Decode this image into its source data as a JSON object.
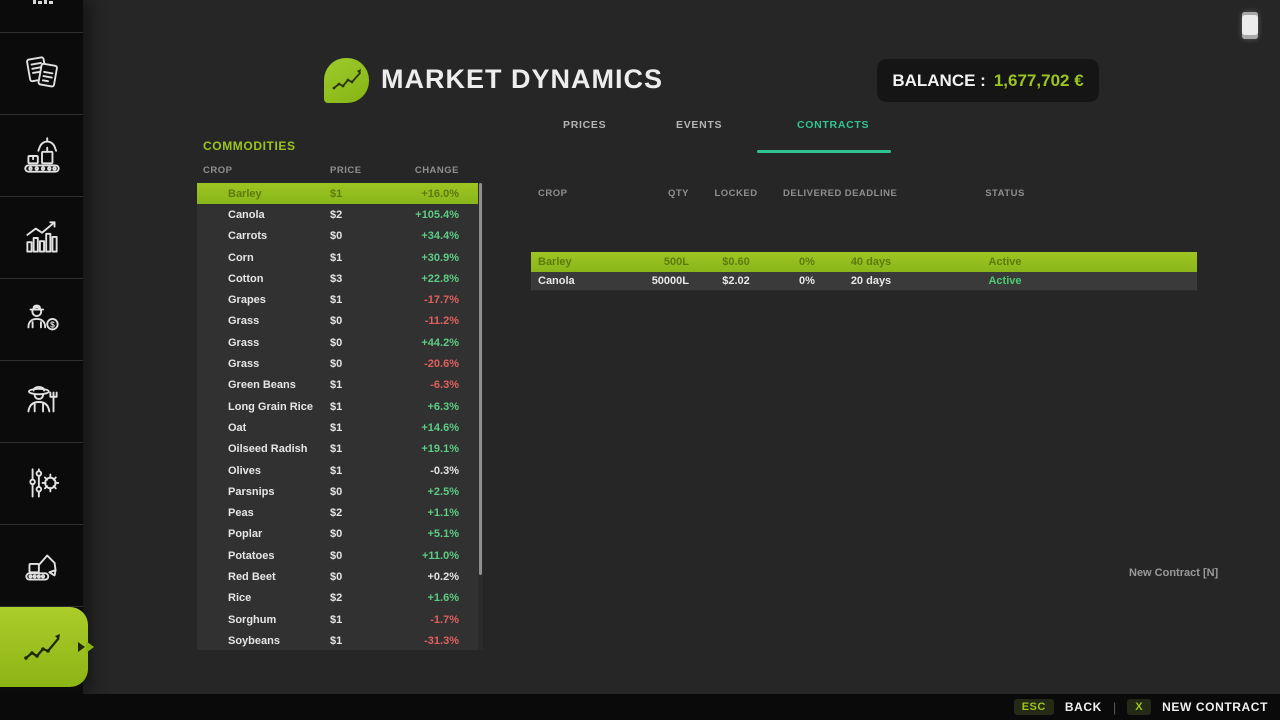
{
  "header": {
    "title": "MARKET DYNAMICS",
    "balance_label": "BALANCE :",
    "balance_value": "1,677,702 €"
  },
  "tabs": [
    {
      "label": "PRICES",
      "active": false
    },
    {
      "label": "EVENTS",
      "active": false
    },
    {
      "label": "CONTRACTS",
      "active": true
    }
  ],
  "sidebar": {
    "items": [
      {
        "name": "top-partial"
      },
      {
        "name": "documents"
      },
      {
        "name": "production"
      },
      {
        "name": "statistics"
      },
      {
        "name": "sales"
      },
      {
        "name": "farmer"
      },
      {
        "name": "settings"
      },
      {
        "name": "construction"
      },
      {
        "name": "market-dynamics",
        "active": true
      }
    ]
  },
  "commodities": {
    "title": "COMMODITIES",
    "columns": [
      "CROP",
      "PRICE",
      "CHANGE"
    ],
    "rows": [
      {
        "crop": "Barley",
        "price": "$1",
        "change": "+16.0%",
        "trend": "positive",
        "selected": true,
        "icon": "barley-icon",
        "icon_color": "#c9a63b"
      },
      {
        "crop": "Canola",
        "price": "$2",
        "change": "+105.4%",
        "trend": "positive",
        "selected": false,
        "icon": "canola-icon",
        "icon_color": "#e0cf48"
      },
      {
        "crop": "Carrots",
        "price": "$0",
        "change": "+34.4%",
        "trend": "positive",
        "selected": false,
        "icon": "carrots-icon",
        "icon_color": "#e07a28"
      },
      {
        "crop": "Corn",
        "price": "$1",
        "change": "+30.9%",
        "trend": "positive",
        "selected": false,
        "icon": "corn-icon",
        "icon_color": "#e6c83c"
      },
      {
        "crop": "Cotton",
        "price": "$3",
        "change": "+22.8%",
        "trend": "positive",
        "selected": false,
        "icon": "cotton-icon",
        "icon_color": "#e6e4de"
      },
      {
        "crop": "Grapes",
        "price": "$1",
        "change": "-17.7%",
        "trend": "negative",
        "selected": false,
        "icon": "grapes-icon",
        "icon_color": "#7d5fa0"
      },
      {
        "crop": "Grass",
        "price": "$0",
        "change": "-11.2%",
        "trend": "negative",
        "selected": false,
        "icon": "grass-icon",
        "icon_color": "#57a648"
      },
      {
        "crop": "Grass",
        "price": "$0",
        "change": "+44.2%",
        "trend": "positive",
        "selected": false,
        "icon": "grass-icon",
        "icon_color": "#6fae58"
      },
      {
        "crop": "Grass",
        "price": "$0",
        "change": "-20.6%",
        "trend": "negative",
        "selected": false,
        "icon": null,
        "icon_color": null
      },
      {
        "crop": "Green Beans",
        "price": "$1",
        "change": "-6.3%",
        "trend": "negative",
        "selected": false,
        "icon": "green-beans-icon",
        "icon_color": "#3f8f3f"
      },
      {
        "crop": "Long Grain Rice",
        "price": "$1",
        "change": "+6.3%",
        "trend": "positive",
        "selected": false,
        "icon": "long-grain-rice-icon",
        "icon_color": "#bdb45e"
      },
      {
        "crop": "Oat",
        "price": "$1",
        "change": "+14.6%",
        "trend": "positive",
        "selected": false,
        "icon": "oat-icon",
        "icon_color": "#c2aa72"
      },
      {
        "crop": "Oilseed Radish",
        "price": "$1",
        "change": "+19.1%",
        "trend": "positive",
        "selected": false,
        "icon": "oilseed-radish-icon",
        "icon_color": "#4f9f5c"
      },
      {
        "crop": "Olives",
        "price": "$1",
        "change": "-0.3%",
        "trend": "neutral",
        "selected": false,
        "icon": "olives-icon",
        "icon_color": "#8d9c3f"
      },
      {
        "crop": "Parsnips",
        "price": "$0",
        "change": "+2.5%",
        "trend": "positive",
        "selected": false,
        "icon": "parsnips-icon",
        "icon_color": "#eadfc4"
      },
      {
        "crop": "Peas",
        "price": "$2",
        "change": "+1.1%",
        "trend": "positive",
        "selected": false,
        "icon": "peas-icon",
        "icon_color": "#5cb75c"
      },
      {
        "crop": "Poplar",
        "price": "$0",
        "change": "+5.1%",
        "trend": "positive",
        "selected": false,
        "icon": "poplar-icon",
        "icon_color": "#4c9c4c"
      },
      {
        "crop": "Potatoes",
        "price": "$0",
        "change": "+11.0%",
        "trend": "positive",
        "selected": false,
        "icon": "potatoes-icon",
        "icon_color": "#a68b66"
      },
      {
        "crop": "Red Beet",
        "price": "$0",
        "change": "+0.2%",
        "trend": "neutral",
        "selected": false,
        "icon": "red-beet-icon",
        "icon_color": "#cf3a4e"
      },
      {
        "crop": "Rice",
        "price": "$2",
        "change": "+1.6%",
        "trend": "positive",
        "selected": false,
        "icon": "rice-icon",
        "icon_color": "#9cab4c"
      },
      {
        "crop": "Sorghum",
        "price": "$1",
        "change": "-1.7%",
        "trend": "negative",
        "selected": false,
        "icon": "sorghum-icon",
        "icon_color": "#b2793a"
      },
      {
        "crop": "Soybeans",
        "price": "$1",
        "change": "-31.3%",
        "trend": "negative",
        "selected": false,
        "icon": "soybeans-icon",
        "icon_color": "#d9b93c"
      }
    ]
  },
  "contracts": {
    "columns": [
      "CROP",
      "QTY",
      "LOCKED",
      "DELIVERED",
      "DEADLINE",
      "STATUS"
    ],
    "rows": [
      {
        "crop": "Barley",
        "qty": "500L",
        "locked": "$0.60",
        "delivered": "0%",
        "deadline": "40 days",
        "status": "Active",
        "selected": true
      },
      {
        "crop": "Canola",
        "qty": "50000L",
        "locked": "$2.02",
        "delivered": "0%",
        "deadline": "20 days",
        "status": "Active",
        "selected": false
      }
    ],
    "new_contract_hint": "New Contract [N]"
  },
  "footer": {
    "back_key": "ESC",
    "back_label": "BACK",
    "divider": "|",
    "new_contract_key": "X",
    "new_contract_label": "NEW CONTRACT"
  },
  "colors": {
    "accent_green": "#9cc41f",
    "tab_active_teal": "#2fc492",
    "positive": "#5ecb84",
    "negative": "#e06060",
    "selected_row_bg": "#93bd20",
    "selected_row_text": "#5d7a0e",
    "page_bg": "#262626",
    "panel_row_bg": "#313131",
    "contract_row_bg": "#3a3a3a"
  }
}
